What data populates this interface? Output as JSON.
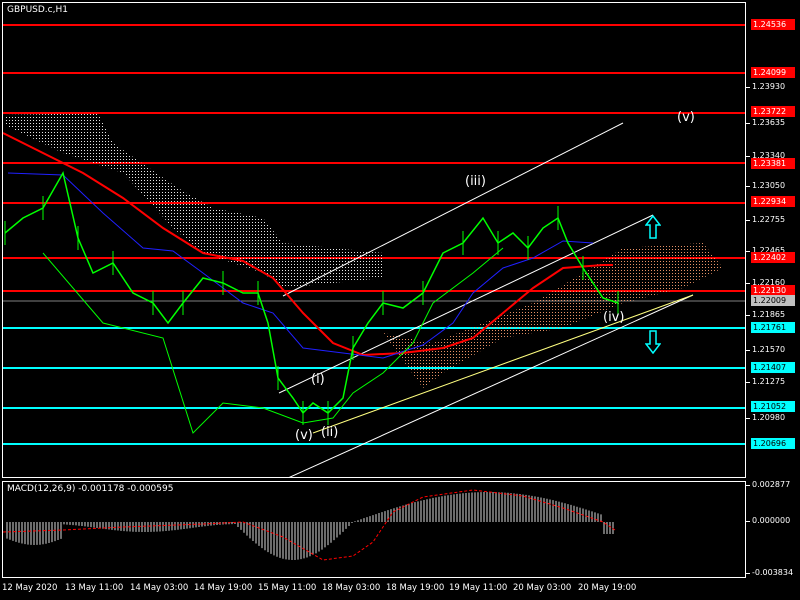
{
  "chart_title": "GBPUSD.c,H1",
  "macd_title": "MACD(12,26,9) -0.001178 -0.000595",
  "colors": {
    "background": "#000000",
    "candles": "#00ff00",
    "resistance": "#ff0000",
    "support": "#00ffff",
    "ma_red": "#ff0000",
    "ma_blue": "#2020ff",
    "channel": "#ffffff",
    "trendline": "#ffff80",
    "ichimoku_cloud": "#ffffff",
    "macd_hist": "#ffffff",
    "macd_signal": "#ff0000"
  },
  "price_ticks": [
    "1.23930",
    "1.23635",
    "1.23340",
    "1.23050",
    "1.22755",
    "1.22465",
    "1.22160",
    "1.21865",
    "1.21570",
    "1.21275",
    "1.20980"
  ],
  "level_labels": [
    {
      "value": "1.24536",
      "color": "#ff0000"
    },
    {
      "value": "1.24099",
      "color": "#ff0000"
    },
    {
      "value": "1.23722",
      "color": "#ff0000"
    },
    {
      "value": "1.23381",
      "color": "#ff0000"
    },
    {
      "value": "1.22934",
      "color": "#ff0000"
    },
    {
      "value": "1.22402",
      "color": "#ff0000"
    },
    {
      "value": "1.22130",
      "color": "#ff0000"
    },
    {
      "value": "1.22009",
      "color": "#c0c0c0"
    },
    {
      "value": "1.21761",
      "color": "#00ffff"
    },
    {
      "value": "1.21407",
      "color": "#00ffff"
    },
    {
      "value": "1.21052",
      "color": "#00ffff"
    },
    {
      "value": "1.20696",
      "color": "#00ffff"
    }
  ],
  "macd_ticks": [
    "0.002877",
    "0.000000",
    "-0.003834"
  ],
  "time_labels": [
    "12 May 2020",
    "13 May 11:00",
    "14 May 03:00",
    "14 May 19:00",
    "15 May 11:00",
    "18 May 03:00",
    "18 May 19:00",
    "19 May 11:00",
    "20 May 03:00",
    "20 May 19:00"
  ],
  "wave_labels": [
    "(v)",
    "(i)",
    "(ii)",
    "(iii)",
    "(iv)",
    "(v)"
  ]
}
